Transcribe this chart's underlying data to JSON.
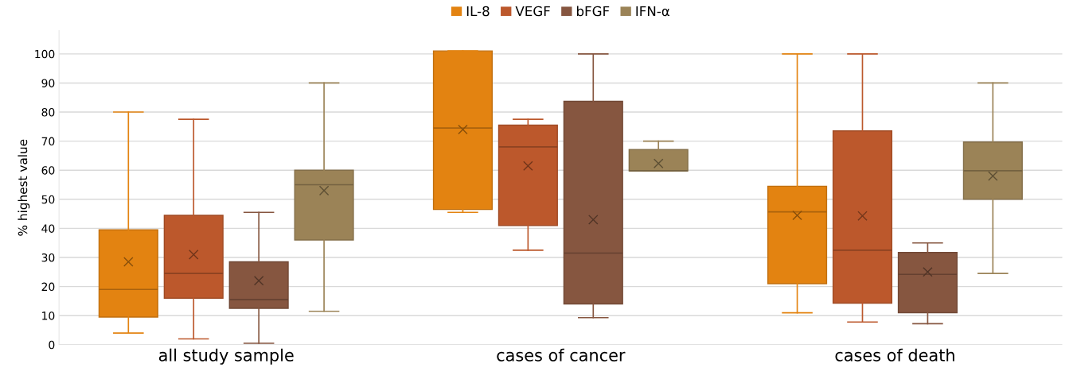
{
  "chart_data": {
    "type": "box",
    "ylabel": "% highest value",
    "categories": [
      "all study sample",
      "cases of cancer",
      "cases of death"
    ],
    "ylim": [
      0,
      108
    ],
    "yticks": [
      0,
      10,
      20,
      30,
      40,
      50,
      60,
      70,
      80,
      90,
      100
    ],
    "grid": "y",
    "legend": "top",
    "series": [
      {
        "name": "IL-8",
        "color": "#e38311",
        "boxes": [
          {
            "low": 4,
            "q1": 9.5,
            "median": 19,
            "q3": 39.5,
            "high": 80,
            "mean": 28.5
          },
          {
            "low": 45.5,
            "q1": 46.5,
            "median": 74.5,
            "q3": 101,
            "high": 101,
            "mean": 74
          },
          {
            "low": 11,
            "q1": 21,
            "median": 45.7,
            "q3": 54.5,
            "high": 100,
            "mean": 44.5
          }
        ]
      },
      {
        "name": "VEGF",
        "color": "#bc582c",
        "boxes": [
          {
            "low": 2,
            "q1": 16,
            "median": 24.5,
            "q3": 44.5,
            "high": 77.5,
            "mean": 31
          },
          {
            "low": 32.5,
            "q1": 41,
            "median": 68,
            "q3": 75.5,
            "high": 77.5,
            "mean": 61.5
          },
          {
            "low": 7.8,
            "q1": 14.3,
            "median": 32.5,
            "q3": 73.5,
            "high": 100,
            "mean": 44.3
          }
        ]
      },
      {
        "name": "bFGF",
        "color": "#865640",
        "boxes": [
          {
            "low": 0.5,
            "q1": 12.5,
            "median": 15.5,
            "q3": 28.5,
            "high": 45.5,
            "mean": 22
          },
          {
            "low": 9.3,
            "q1": 14,
            "median": 31.5,
            "q3": 83.7,
            "high": 100,
            "mean": 43
          },
          {
            "low": 7.2,
            "q1": 11,
            "median": 24.2,
            "q3": 31.7,
            "high": 35,
            "mean": 25
          }
        ]
      },
      {
        "name": "IFN-α",
        "color": "#9b8357",
        "boxes": [
          {
            "low": 11.5,
            "q1": 36,
            "median": 55,
            "q3": 60,
            "high": 90,
            "mean": 53
          },
          {
            "low": 59.8,
            "q1": 59.8,
            "median": 59.8,
            "q3": 67.1,
            "high": 70,
            "mean": 62.3
          },
          {
            "low": 24.5,
            "q1": 50,
            "median": 59.8,
            "q3": 69.7,
            "high": 90,
            "mean": 58
          }
        ]
      }
    ]
  }
}
